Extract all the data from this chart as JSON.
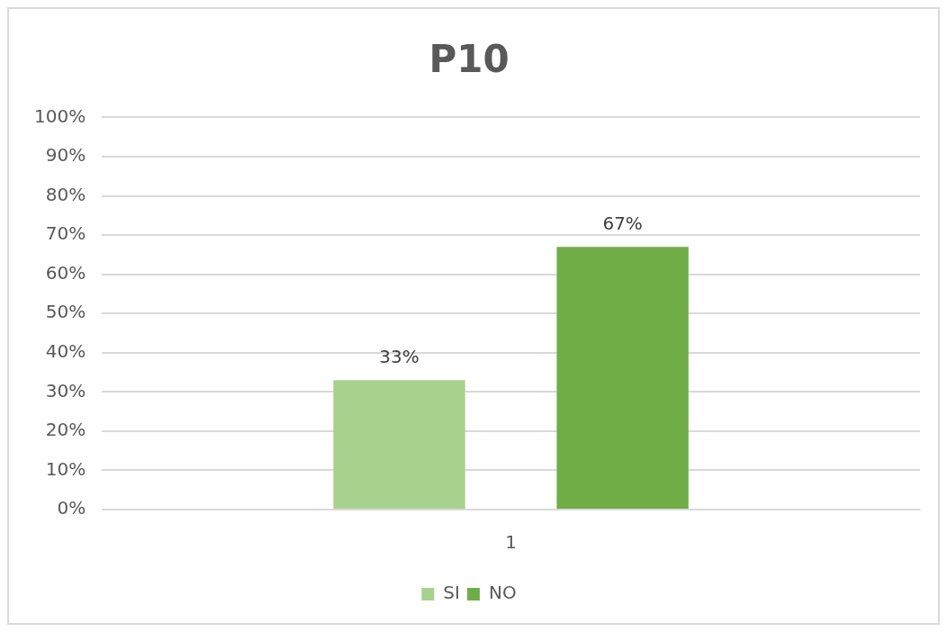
{
  "chart_data": {
    "type": "bar",
    "title": "P10",
    "categories": [
      "1"
    ],
    "series": [
      {
        "name": "SI",
        "color": "#a9d18e",
        "values": [
          33
        ],
        "value_labels": [
          "33%"
        ]
      },
      {
        "name": "NO",
        "color": "#70ad47",
        "values": [
          67
        ],
        "value_labels": [
          "67%"
        ]
      }
    ],
    "ylim": [
      0,
      100
    ],
    "yticks": [
      {
        "value": 0,
        "label": "0%"
      },
      {
        "value": 10,
        "label": "10%"
      },
      {
        "value": 20,
        "label": "20%"
      },
      {
        "value": 30,
        "label": "30%"
      },
      {
        "value": 40,
        "label": "40%"
      },
      {
        "value": 50,
        "label": "50%"
      },
      {
        "value": 60,
        "label": "60%"
      },
      {
        "value": 70,
        "label": "70%"
      },
      {
        "value": 80,
        "label": "80%"
      },
      {
        "value": 90,
        "label": "90%"
      },
      {
        "value": 100,
        "label": "100%"
      }
    ],
    "grid": "y",
    "legend": "bottom"
  }
}
